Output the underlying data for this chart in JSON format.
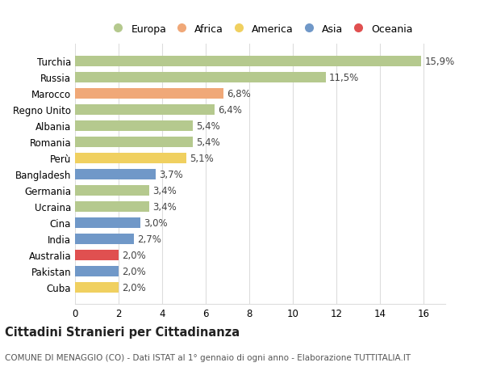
{
  "categories": [
    "Turchia",
    "Russia",
    "Marocco",
    "Regno Unito",
    "Albania",
    "Romania",
    "Perù",
    "Bangladesh",
    "Germania",
    "Ucraina",
    "Cina",
    "India",
    "Australia",
    "Pakistan",
    "Cuba"
  ],
  "values": [
    15.9,
    11.5,
    6.8,
    6.4,
    5.4,
    5.4,
    5.1,
    3.7,
    3.4,
    3.4,
    3.0,
    2.7,
    2.0,
    2.0,
    2.0
  ],
  "labels": [
    "15,9%",
    "11,5%",
    "6,8%",
    "6,4%",
    "5,4%",
    "5,4%",
    "5,1%",
    "3,7%",
    "3,4%",
    "3,4%",
    "3,0%",
    "2,7%",
    "2,0%",
    "2,0%",
    "2,0%"
  ],
  "continents": [
    "Europa",
    "Europa",
    "Africa",
    "Europa",
    "Europa",
    "Europa",
    "America",
    "Asia",
    "Europa",
    "Europa",
    "Asia",
    "Asia",
    "Oceania",
    "Asia",
    "America"
  ],
  "continent_colors": {
    "Europa": "#b5c98e",
    "Africa": "#f0a878",
    "America": "#f0d060",
    "Asia": "#7098c8",
    "Oceania": "#e05050"
  },
  "legend_order": [
    "Europa",
    "Africa",
    "America",
    "Asia",
    "Oceania"
  ],
  "title": "Cittadini Stranieri per Cittadinanza",
  "subtitle": "COMUNE DI MENAGGIO (CO) - Dati ISTAT al 1° gennaio di ogni anno - Elaborazione TUTTITALIA.IT",
  "xlim": [
    0,
    17
  ],
  "xticks": [
    0,
    2,
    4,
    6,
    8,
    10,
    12,
    14,
    16
  ],
  "background_color": "#ffffff",
  "grid_color": "#dddddd",
  "bar_height": 0.65,
  "label_fontsize": 8.5,
  "tick_fontsize": 8.5,
  "title_fontsize": 10.5,
  "subtitle_fontsize": 7.5
}
